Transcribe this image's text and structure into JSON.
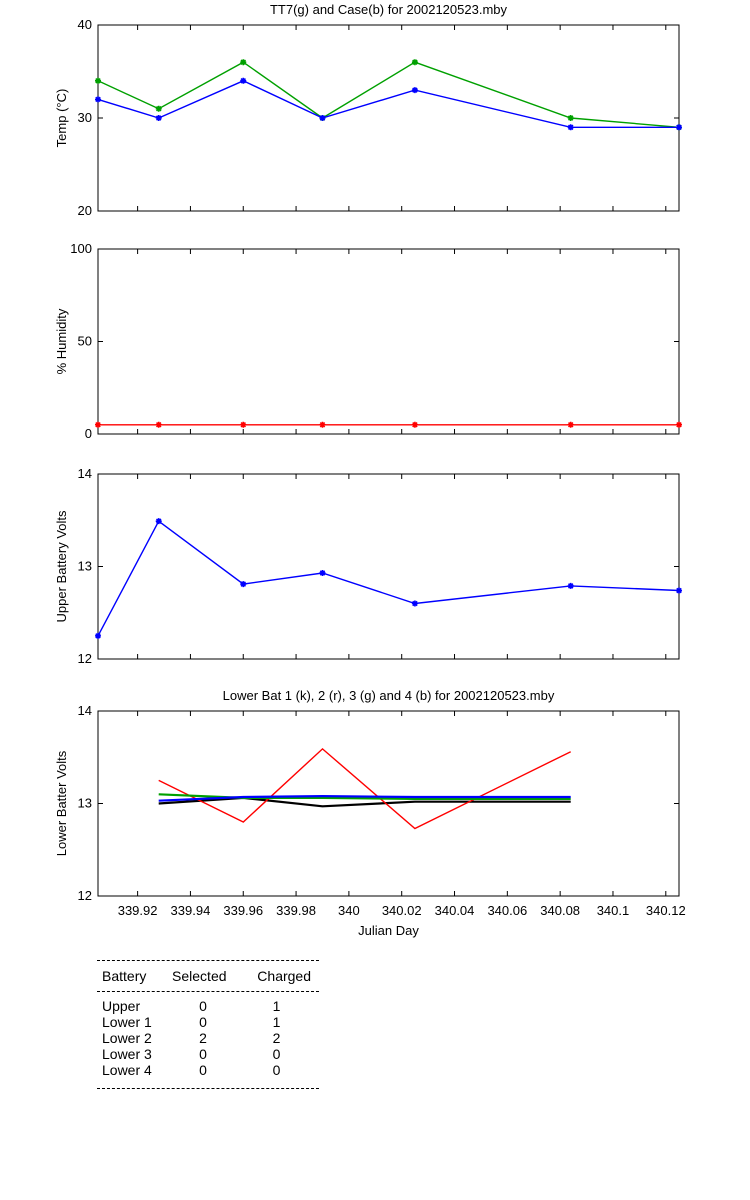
{
  "colors": {
    "green": "#00a000",
    "blue": "#0000ff",
    "red": "#ff0000",
    "black": "#000000"
  },
  "x_axis": {
    "label": "Julian Day",
    "ticks": [
      339.92,
      339.94,
      339.96,
      339.98,
      340,
      340.02,
      340.04,
      340.06,
      340.08,
      340.1,
      340.12
    ],
    "tick_labels": [
      "339.92",
      "339.94",
      "339.96",
      "339.98",
      "340",
      "340.02",
      "340.04",
      "340.06",
      "340.08",
      "340.1",
      "340.12"
    ],
    "range": [
      339.905,
      340.125
    ]
  },
  "chart_data": [
    {
      "type": "line",
      "title": "TT7(g) and Case(b) for 2002120523.mby",
      "ylabel": "Temp (°C)",
      "ylim": [
        20,
        40
      ],
      "yticks": [
        20,
        30,
        40
      ],
      "x": [
        339.905,
        339.928,
        339.96,
        339.99,
        340.025,
        340.084,
        340.125
      ],
      "series": [
        {
          "color": "green",
          "values": [
            34,
            31,
            36,
            30,
            36,
            30,
            29
          ]
        },
        {
          "color": "blue",
          "values": [
            32,
            30,
            34,
            30,
            33,
            29,
            29
          ]
        }
      ]
    },
    {
      "type": "line",
      "title": "",
      "ylabel": "% Humidity",
      "ylim": [
        0,
        100
      ],
      "yticks": [
        0,
        50,
        100
      ],
      "x": [
        339.905,
        339.928,
        339.96,
        339.99,
        340.025,
        340.084,
        340.125
      ],
      "series": [
        {
          "color": "red",
          "values": [
            5,
            5,
            5,
            5,
            5,
            5,
            5
          ]
        }
      ]
    },
    {
      "type": "line",
      "title": "",
      "ylabel": "Upper Battery Volts",
      "ylim": [
        12,
        14
      ],
      "yticks": [
        12,
        13,
        14
      ],
      "x": [
        339.905,
        339.928,
        339.96,
        339.99,
        340.025,
        340.084,
        340.125
      ],
      "series": [
        {
          "color": "blue",
          "values": [
            12.25,
            13.49,
            12.81,
            12.93,
            12.6,
            12.79,
            12.74
          ]
        }
      ]
    },
    {
      "type": "line",
      "title": "Lower Bat 1 (k), 2 (r), 3 (g) and 4 (b) for 2002120523.mby",
      "ylabel": "Lower Batter Volts",
      "ylim": [
        12,
        14
      ],
      "yticks": [
        12,
        13,
        14
      ],
      "x": [
        339.928,
        339.96,
        339.99,
        340.025,
        340.084
      ],
      "series": [
        {
          "color": "black",
          "values": [
            13.0,
            13.06,
            12.97,
            13.02,
            13.02
          ]
        },
        {
          "color": "red",
          "values": [
            13.25,
            12.8,
            13.59,
            12.73,
            13.56
          ]
        },
        {
          "color": "green",
          "values": [
            13.1,
            13.06,
            13.06,
            13.05,
            13.05
          ]
        },
        {
          "color": "blue",
          "values": [
            13.03,
            13.07,
            13.08,
            13.07,
            13.07
          ]
        }
      ]
    }
  ],
  "table": {
    "headers": [
      "Battery",
      "Selected",
      "Charged"
    ],
    "rows": [
      [
        "Upper",
        "0",
        "1"
      ],
      [
        "Lower 1",
        "0",
        "1"
      ],
      [
        "Lower 2",
        "2",
        "2"
      ],
      [
        "Lower 3",
        "0",
        "0"
      ],
      [
        "Lower 4",
        "0",
        "0"
      ]
    ]
  }
}
